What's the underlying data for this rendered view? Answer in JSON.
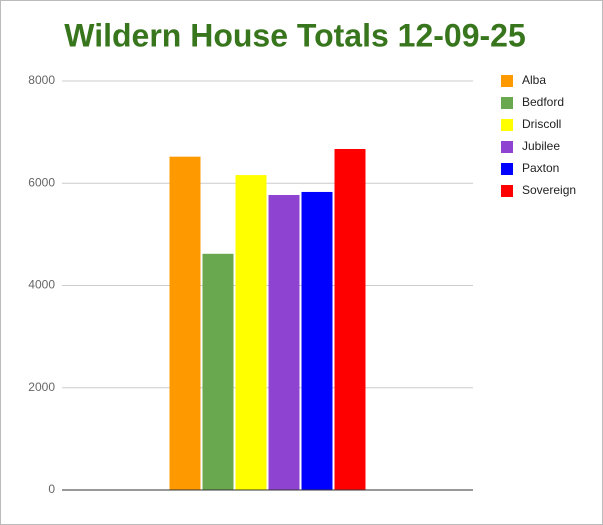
{
  "chart_data": {
    "type": "bar",
    "title": "Wildern House Totals 12-09-25",
    "categories": [
      null
    ],
    "series": [
      {
        "name": "Alba",
        "color": "#ff9900",
        "values": [
          6520
        ]
      },
      {
        "name": "Bedford",
        "color": "#6aa84f",
        "values": [
          4620
        ]
      },
      {
        "name": "Driscoll",
        "color": "#ffff00",
        "values": [
          6160
        ]
      },
      {
        "name": "Jubilee",
        "color": "#8e44d0",
        "values": [
          5770
        ]
      },
      {
        "name": "Paxton",
        "color": "#0000ff",
        "values": [
          5830
        ]
      },
      {
        "name": "Sovereign",
        "color": "#ff0000",
        "values": [
          6670
        ]
      }
    ],
    "ylim": [
      0,
      8000
    ],
    "yticks": [
      0,
      2000,
      4000,
      6000,
      8000
    ],
    "grid": true,
    "legend": "right"
  }
}
